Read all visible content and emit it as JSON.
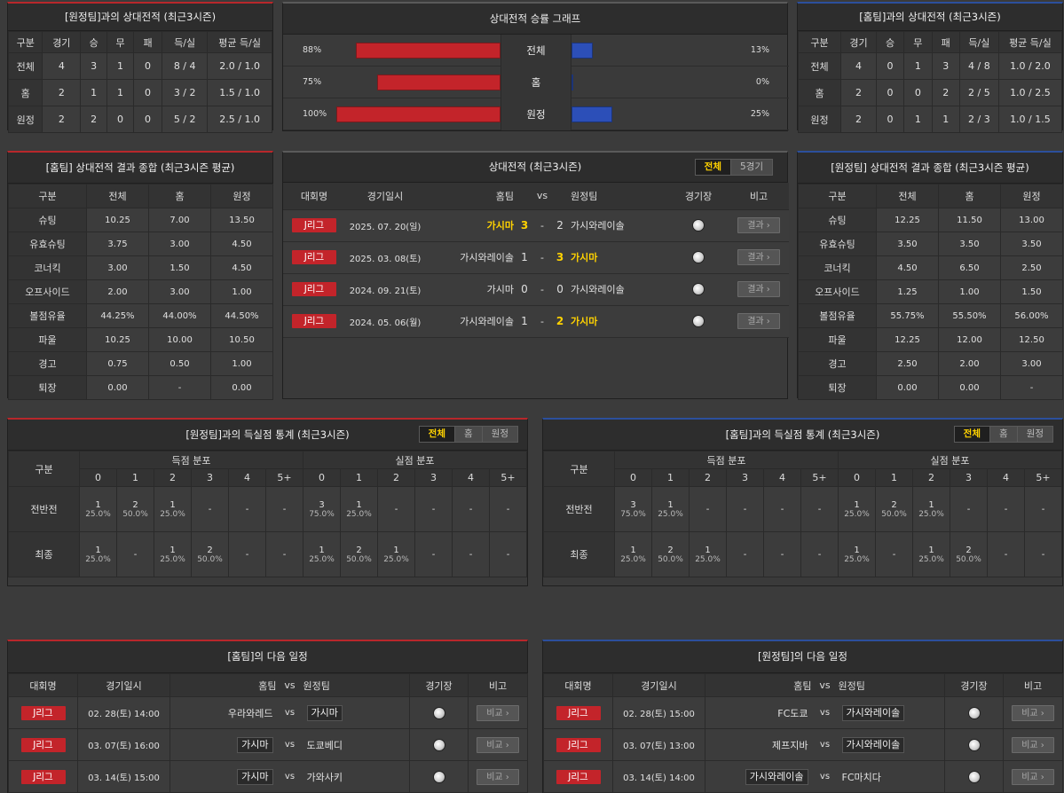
{
  "h2h_away": {
    "title": "[원정팀]과의 상대전적 (최근3시즌)",
    "headers": [
      "구분",
      "경기",
      "승",
      "무",
      "패",
      "득/실",
      "평균 득/실"
    ],
    "rows": [
      [
        "전체",
        "4",
        "3",
        "1",
        "0",
        "8 / 4",
        "2.0 / 1.0"
      ],
      [
        "홈",
        "2",
        "1",
        "1",
        "0",
        "3 / 2",
        "1.5 / 1.0"
      ],
      [
        "원정",
        "2",
        "2",
        "0",
        "0",
        "5 / 2",
        "2.5 / 1.0"
      ]
    ]
  },
  "h2h_home": {
    "title": "[홈팀]과의 상대전적 (최근3시즌)",
    "headers": [
      "구분",
      "경기",
      "승",
      "무",
      "패",
      "득/실",
      "평균 득/실"
    ],
    "rows": [
      [
        "전체",
        "4",
        "0",
        "1",
        "3",
        "4 / 8",
        "1.0 / 2.0"
      ],
      [
        "홈",
        "2",
        "0",
        "0",
        "2",
        "2 / 5",
        "1.0 / 2.5"
      ],
      [
        "원정",
        "2",
        "0",
        "1",
        "1",
        "2 / 3",
        "1.0 / 1.5"
      ]
    ]
  },
  "winrate": {
    "title": "상대전적 승률 그래프",
    "rows": [
      {
        "label": "전체",
        "left_text": "88%",
        "right_text": "13%",
        "left": 0.88,
        "right": 0.13
      },
      {
        "label": "홈",
        "left_text": "75%",
        "right_text": "0%",
        "left": 0.75,
        "right": 0.0
      },
      {
        "label": "원정",
        "left_text": "100%",
        "right_text": "25%",
        "left": 1.0,
        "right": 0.25
      }
    ],
    "colors": {
      "left": "#c3242a",
      "right": "#2c4fb8"
    }
  },
  "stats_home": {
    "title": "[홈팀] 상대전적 결과 종합 (최근3시즌 평균)",
    "headers": [
      "구분",
      "전체",
      "홈",
      "원정"
    ],
    "rows": [
      [
        "슈팅",
        "10.25",
        "7.00",
        "13.50"
      ],
      [
        "유효슈팅",
        "3.75",
        "3.00",
        "4.50"
      ],
      [
        "코너킥",
        "3.00",
        "1.50",
        "4.50"
      ],
      [
        "오프사이드",
        "2.00",
        "3.00",
        "1.00"
      ],
      [
        "볼점유율",
        "44.25%",
        "44.00%",
        "44.50%"
      ],
      [
        "파울",
        "10.25",
        "10.00",
        "10.50"
      ],
      [
        "경고",
        "0.75",
        "0.50",
        "1.00"
      ],
      [
        "퇴장",
        "0.00",
        "-",
        "0.00"
      ]
    ]
  },
  "stats_away": {
    "title": "[원정팀] 상대전적 결과 종합 (최근3시즌 평균)",
    "headers": [
      "구분",
      "전체",
      "홈",
      "원정"
    ],
    "rows": [
      [
        "슈팅",
        "12.25",
        "11.50",
        "13.00"
      ],
      [
        "유효슈팅",
        "3.50",
        "3.50",
        "3.50"
      ],
      [
        "코너킥",
        "4.50",
        "6.50",
        "2.50"
      ],
      [
        "오프사이드",
        "1.25",
        "1.00",
        "1.50"
      ],
      [
        "볼점유율",
        "55.75%",
        "55.50%",
        "56.00%"
      ],
      [
        "파울",
        "12.25",
        "12.00",
        "12.50"
      ],
      [
        "경고",
        "2.50",
        "2.00",
        "3.00"
      ],
      [
        "퇴장",
        "0.00",
        "0.00",
        "-"
      ]
    ]
  },
  "h2h_list": {
    "title": "상대전적 (최근3시즌)",
    "tabs": [
      "전체",
      "5경기"
    ],
    "headers": {
      "league": "대회명",
      "date": "경기일시",
      "home": "홈팀",
      "vs": "vs",
      "away": "원정팀",
      "stadium": "경기장",
      "note": "비고"
    },
    "result_label": "결과",
    "matches": [
      {
        "league": "J리그",
        "date": "2025. 07. 20(일)",
        "home": "가시마",
        "hs": "3",
        "as": "2",
        "away": "가시와레이솔",
        "home_win": true,
        "away_win": false
      },
      {
        "league": "J리그",
        "date": "2025. 03. 08(토)",
        "home": "가시와레이솔",
        "hs": "1",
        "as": "3",
        "away": "가시마",
        "home_win": false,
        "away_win": true
      },
      {
        "league": "J리그",
        "date": "2024. 09. 21(토)",
        "home": "가시마",
        "hs": "0",
        "as": "0",
        "away": "가시와레이솔",
        "home_win": false,
        "away_win": false
      },
      {
        "league": "J리그",
        "date": "2024. 05. 06(월)",
        "home": "가시와레이솔",
        "hs": "1",
        "as": "2",
        "away": "가시마",
        "home_win": false,
        "away_win": true
      }
    ]
  },
  "goals_away": {
    "title": "[원정팀]과의 득실점 통계 (최근3시즌)",
    "tabs": [
      "전체",
      "홈",
      "원정"
    ],
    "gubun": "구분",
    "scored_label": "득점 분포",
    "conceded_label": "실점 분포",
    "cols": [
      "0",
      "1",
      "2",
      "3",
      "4",
      "5+"
    ],
    "rows": [
      {
        "label": "전반전",
        "scored": [
          [
            "1",
            "25.0%"
          ],
          [
            "2",
            "50.0%"
          ],
          [
            "1",
            "25.0%"
          ],
          [
            "-",
            ""
          ],
          [
            "-",
            ""
          ],
          [
            "-",
            ""
          ]
        ],
        "conceded": [
          [
            "3",
            "75.0%"
          ],
          [
            "1",
            "25.0%"
          ],
          [
            "-",
            ""
          ],
          [
            "-",
            ""
          ],
          [
            "-",
            ""
          ],
          [
            "-",
            ""
          ]
        ]
      },
      {
        "label": "최종",
        "scored": [
          [
            "1",
            "25.0%"
          ],
          [
            "-",
            ""
          ],
          [
            "1",
            "25.0%"
          ],
          [
            "2",
            "50.0%"
          ],
          [
            "-",
            ""
          ],
          [
            "-",
            ""
          ]
        ],
        "conceded": [
          [
            "1",
            "25.0%"
          ],
          [
            "2",
            "50.0%"
          ],
          [
            "1",
            "25.0%"
          ],
          [
            "-",
            ""
          ],
          [
            "-",
            ""
          ],
          [
            "-",
            ""
          ]
        ]
      }
    ]
  },
  "goals_home": {
    "title": "[홈팀]과의 득실점 통계 (최근3시즌)",
    "tabs": [
      "전체",
      "홈",
      "원정"
    ],
    "gubun": "구분",
    "scored_label": "득점 분포",
    "conceded_label": "실점 분포",
    "cols": [
      "0",
      "1",
      "2",
      "3",
      "4",
      "5+"
    ],
    "rows": [
      {
        "label": "전반전",
        "scored": [
          [
            "3",
            "75.0%"
          ],
          [
            "1",
            "25.0%"
          ],
          [
            "-",
            ""
          ],
          [
            "-",
            ""
          ],
          [
            "-",
            ""
          ],
          [
            "-",
            ""
          ]
        ],
        "conceded": [
          [
            "1",
            "25.0%"
          ],
          [
            "2",
            "50.0%"
          ],
          [
            "1",
            "25.0%"
          ],
          [
            "-",
            ""
          ],
          [
            "-",
            ""
          ],
          [
            "-",
            ""
          ]
        ]
      },
      {
        "label": "최종",
        "scored": [
          [
            "1",
            "25.0%"
          ],
          [
            "2",
            "50.0%"
          ],
          [
            "1",
            "25.0%"
          ],
          [
            "-",
            ""
          ],
          [
            "-",
            ""
          ],
          [
            "-",
            ""
          ]
        ],
        "conceded": [
          [
            "1",
            "25.0%"
          ],
          [
            "-",
            ""
          ],
          [
            "1",
            "25.0%"
          ],
          [
            "2",
            "50.0%"
          ],
          [
            "-",
            ""
          ],
          [
            "-",
            ""
          ]
        ]
      }
    ]
  },
  "next_home": {
    "title": "[홈팀]의 다음 일정",
    "headers": {
      "league": "대회명",
      "date": "경기일시",
      "home": "홈팀",
      "vs": "vs",
      "away": "원정팀",
      "stadium": "경기장",
      "note": "비고"
    },
    "btn": "비교",
    "matches": [
      {
        "league": "J리그",
        "date": "02. 28(토) 14:00",
        "home": "우라와레드",
        "away": "가시마",
        "hl": "away"
      },
      {
        "league": "J리그",
        "date": "03. 07(토) 16:00",
        "home": "가시마",
        "away": "도쿄베디",
        "hl": "home"
      },
      {
        "league": "J리그",
        "date": "03. 14(토) 15:00",
        "home": "가시마",
        "away": "가와사키",
        "hl": "home"
      }
    ]
  },
  "next_away": {
    "title": "[원정팀]의 다음 일정",
    "headers": {
      "league": "대회명",
      "date": "경기일시",
      "home": "홈팀",
      "vs": "vs",
      "away": "원정팀",
      "stadium": "경기장",
      "note": "비고"
    },
    "btn": "비교",
    "matches": [
      {
        "league": "J리그",
        "date": "02. 28(토) 15:00",
        "home": "FC도쿄",
        "away": "가시와레이솔",
        "hl": "away"
      },
      {
        "league": "J리그",
        "date": "03. 07(토) 13:00",
        "home": "제프지바",
        "away": "가시와레이솔",
        "hl": "away"
      },
      {
        "league": "J리그",
        "date": "03. 14(토) 14:00",
        "home": "가시와레이솔",
        "away": "FC마치다",
        "hl": "home"
      }
    ]
  }
}
